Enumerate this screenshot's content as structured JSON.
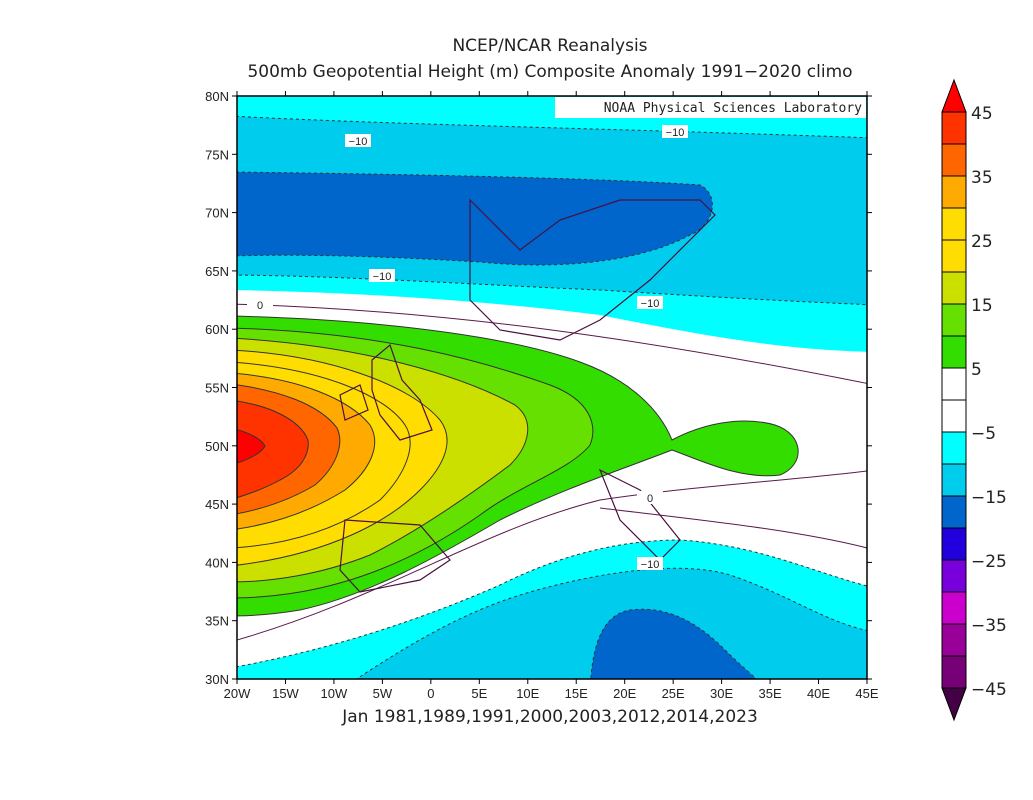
{
  "title": "NCEP/NCAR Reanalysis",
  "subtitle": "500mb Geopotential Height (m) Composite Anomaly 1991−2020 climo",
  "credit": "NOAA Physical Sciences Laboratory",
  "xlabel": "Jan 1981,1989,1991,2000,2003,2012,2014,2023",
  "map": {
    "lon_range": [
      -20,
      45
    ],
    "lat_range": [
      30,
      80
    ],
    "lat_ticks": [
      "80N",
      "75N",
      "70N",
      "65N",
      "60N",
      "55N",
      "50N",
      "45N",
      "40N",
      "35N",
      "30N"
    ],
    "lon_ticks": [
      "20W",
      "15W",
      "10W",
      "5W",
      "0",
      "5E",
      "10E",
      "15E",
      "20E",
      "25E",
      "30E",
      "35E",
      "40E",
      "45E"
    ],
    "contour_labels": [
      "0",
      "−10",
      "−10",
      "−10",
      "−10",
      "0",
      "−10"
    ],
    "features": [
      "max positive anomaly centered near 50N 20W (>45 m)",
      "negative anomaly over Norwegian Sea (-15 to -20 m)",
      "negative anomaly over Ionian/eastern Mediterranean (-15 to -20 m)"
    ]
  },
  "colorbar": {
    "labels": [
      "45",
      "35",
      "25",
      "15",
      "5",
      "−5",
      "−15",
      "−25",
      "−35",
      "−45"
    ],
    "colors": [
      "#ff0000",
      "#ff3300",
      "#ff6600",
      "#ffaa00",
      "#ffdd00",
      "#ffdd00",
      "#cce000",
      "#66e000",
      "#33dd00",
      "#ffffff",
      "#ffffff",
      "#00ffff",
      "#00ccee",
      "#0066cc",
      "#2200dd",
      "#7700dd",
      "#cc00cc",
      "#990099",
      "#770077",
      "#440044"
    ]
  }
}
